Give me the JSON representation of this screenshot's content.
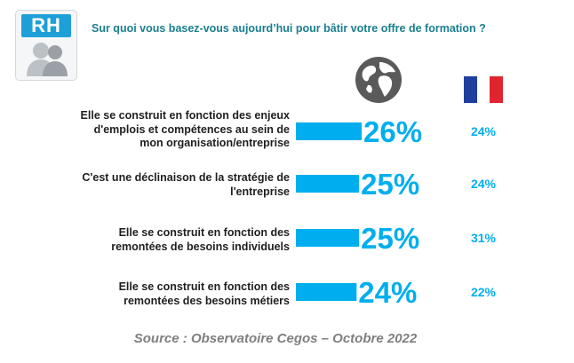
{
  "badge": {
    "label": "RH"
  },
  "question": "Sur quoi vous basez-vous aujourd’hui pour bâtir votre offre de formation ?",
  "icons": {
    "world": "globe-icon",
    "france": "france-flag-icon"
  },
  "colors": {
    "bar": "#00aeef",
    "world_value": "#00aeef",
    "france_value": "#00aeef",
    "question": "#1a7f8f",
    "label": "#1f1f1f",
    "source": "#7f7f7f",
    "flag_blue": "#1f3f9f",
    "flag_white": "#ffffff",
    "flag_red": "#e0252f"
  },
  "chart_data": {
    "type": "bar",
    "orientation": "horizontal",
    "categories": [
      "Elle se construit en fonction des enjeux d'emplois et compétences au sein de mon organisation/entreprise",
      "C'est une déclinaison de la stratégie de l'entreprise",
      "Elle se construit en fonction des remontées de besoins individuels",
      "Elle se construit en fonction des remontées des besoins métiers"
    ],
    "category_lines": [
      [
        "Elle se construit en fonction des enjeux",
        "d'emplois et compétences au sein de",
        "mon organisation/entreprise"
      ],
      [
        "C'est une déclinaison de la stratégie de",
        "l'entreprise"
      ],
      [
        "Elle se construit en fonction des",
        "remontées de besoins individuels"
      ],
      [
        "Elle se construit en fonction des",
        "remontées des besoins métiers"
      ]
    ],
    "series": [
      {
        "values": [
          26,
          25,
          25,
          24
        ],
        "labels": [
          "26%",
          "25%",
          "25%",
          "24%"
        ]
      },
      {
        "values": [
          24,
          24,
          31,
          22
        ],
        "labels": [
          "24%",
          "24%",
          "31%",
          "22%"
        ]
      }
    ],
    "unit": "%"
  },
  "source": "Source : Observatoire Cegos – Octobre 2022"
}
